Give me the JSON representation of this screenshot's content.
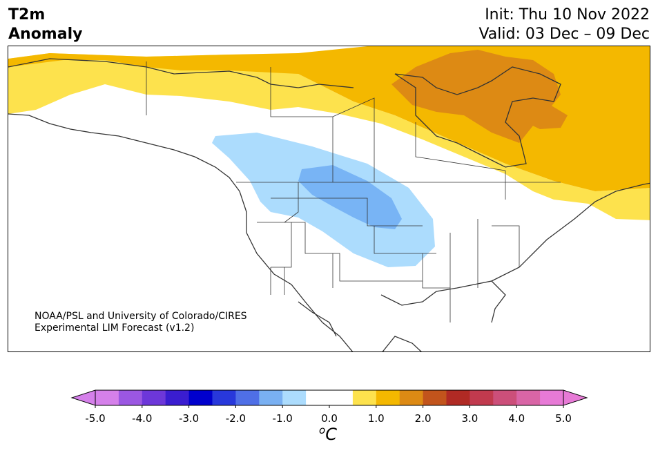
{
  "header": {
    "title_line1": "T2m",
    "title_line2": "Anomaly",
    "init": "Init: Thu 10 Nov 2022",
    "valid": "Valid: 03 Dec – 09 Dec"
  },
  "map": {
    "credit_line1": "NOAA/PSL and University of Colorado/CIRES",
    "credit_line2": "Experimental LIM Forecast (v1.2)",
    "anomaly_colors": {
      "warm_1": "#fde24d",
      "warm_2": "#f4b800",
      "warm_3": "#dd8a14",
      "cool_1": "#acdcfd",
      "cool_2": "#78b4f5",
      "neutral": "#ffffff"
    }
  },
  "colorbar": {
    "units_base": "C",
    "units_sup": "o",
    "ticks": [
      "-5.0",
      "-4.0",
      "-3.0",
      "-2.0",
      "-1.0",
      "0.0",
      "1.0",
      "2.0",
      "3.0",
      "4.0",
      "5.0"
    ],
    "colors": [
      "#d580ea",
      "#9b57e2",
      "#6d37d9",
      "#3a1dd0",
      "#0000cd",
      "#2838db",
      "#4f6fe6",
      "#79b0f2",
      "#acdcfd",
      "#ffffff",
      "#ffffff",
      "#fde24d",
      "#f4b800",
      "#dd8a14",
      "#c2541c",
      "#b02a24",
      "#c13a4e",
      "#cc4f7a",
      "#d965a6",
      "#e77ad6"
    ]
  }
}
